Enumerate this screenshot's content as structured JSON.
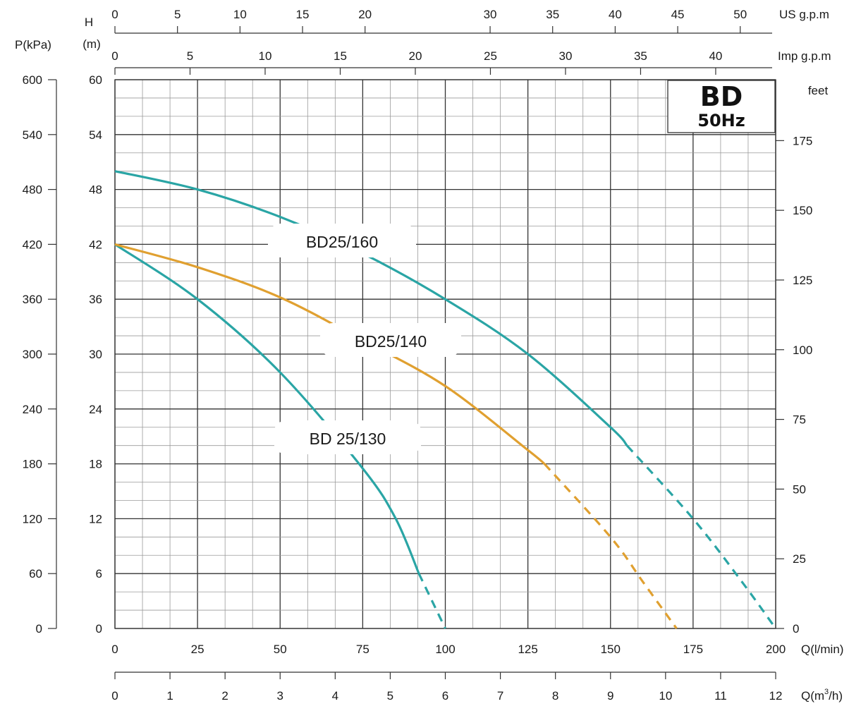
{
  "chart_data": {
    "type": "line",
    "badge": {
      "title": "BD",
      "subtitle": "50Hz"
    },
    "axes": {
      "x_primary": {
        "label": "Q(l/min)",
        "range": [
          0,
          200
        ],
        "ticks": [
          "0",
          "25",
          "50",
          "75",
          "100",
          "125",
          "150",
          "175",
          "200"
        ]
      },
      "x_m3h": {
        "label_main": "Q(m",
        "label_sup": "3",
        "label_end": "/h)",
        "range": [
          0,
          12
        ],
        "ticks": [
          "0",
          "1",
          "2",
          "3",
          "4",
          "5",
          "6",
          "7",
          "8",
          "9",
          "10",
          "11",
          "12"
        ]
      },
      "x_us_gpm": {
        "label": "US  g.p.m",
        "ticks": [
          "0",
          "5",
          "10",
          "15",
          "20",
          "30",
          "35",
          "40",
          "45",
          "50"
        ],
        "tick_values": [
          0,
          5,
          10,
          15,
          20,
          30,
          35,
          40,
          45,
          50
        ]
      },
      "x_imp_gpm": {
        "label": "Imp  g.p.m",
        "ticks": [
          "0",
          "5",
          "10",
          "15",
          "20",
          "25",
          "30",
          "35",
          "40"
        ],
        "tick_values": [
          0,
          5,
          10,
          15,
          20,
          25,
          30,
          35,
          40
        ]
      },
      "y_head": {
        "label_top": "H",
        "label_unit": "(m)",
        "range": [
          0,
          60
        ],
        "ticks": [
          "0",
          "6",
          "12",
          "18",
          "24",
          "30",
          "36",
          "42",
          "48",
          "54",
          "60"
        ]
      },
      "y_pressure": {
        "label": "P(kPa)",
        "range": [
          0,
          600
        ],
        "ticks": [
          "0",
          "60",
          "120",
          "180",
          "240",
          "300",
          "360",
          "420",
          "480",
          "540",
          "600"
        ]
      },
      "y_feet": {
        "label": "feet",
        "ticks": [
          "0",
          "25",
          "50",
          "75",
          "100",
          "125",
          "150",
          "175"
        ],
        "tick_values": [
          0,
          25,
          50,
          75,
          100,
          125,
          150,
          175
        ]
      }
    },
    "grid": true,
    "series": [
      {
        "name": "BD 25/130",
        "color": "#2aa5a5",
        "solid_points": [
          [
            0,
            42
          ],
          [
            25,
            36
          ],
          [
            50,
            28
          ],
          [
            75,
            17.5
          ],
          [
            85,
            12
          ],
          [
            92,
            6
          ]
        ],
        "dashed_points": [
          [
            92,
            6
          ],
          [
            96,
            3
          ],
          [
            100,
            0
          ]
        ]
      },
      {
        "name": "BD25/140",
        "color": "#e0a030",
        "solid_points": [
          [
            0,
            42
          ],
          [
            25,
            39.5
          ],
          [
            50,
            36.2
          ],
          [
            75,
            31.5
          ],
          [
            100,
            26.5
          ],
          [
            125,
            19.5
          ],
          [
            130,
            18
          ]
        ],
        "dashed_points": [
          [
            130,
            18
          ],
          [
            150,
            10
          ],
          [
            160,
            5
          ],
          [
            170,
            0
          ]
        ]
      },
      {
        "name": "BD25/160",
        "color": "#2aa5a5",
        "solid_points": [
          [
            0,
            50
          ],
          [
            25,
            48
          ],
          [
            50,
            45
          ],
          [
            75,
            41
          ],
          [
            100,
            36
          ],
          [
            125,
            30
          ],
          [
            150,
            22
          ],
          [
            155,
            20
          ]
        ],
        "dashed_points": [
          [
            155,
            20
          ],
          [
            175,
            12
          ],
          [
            190,
            5
          ],
          [
            200,
            0
          ]
        ]
      }
    ]
  }
}
